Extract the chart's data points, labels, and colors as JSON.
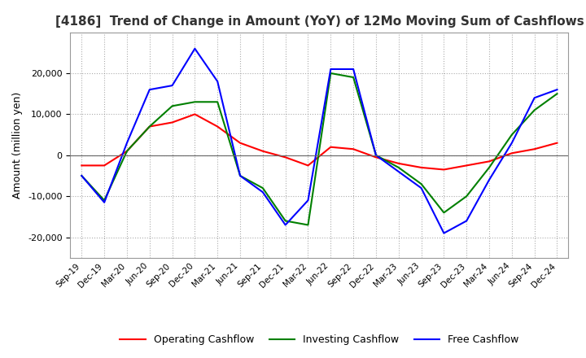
{
  "title": "[4186]  Trend of Change in Amount (YoY) of 12Mo Moving Sum of Cashflows",
  "ylabel": "Amount (million yen)",
  "ylim": [
    -25000,
    30000
  ],
  "yticks": [
    -20000,
    -10000,
    0,
    10000,
    20000
  ],
  "legend_labels": [
    "Operating Cashflow",
    "Investing Cashflow",
    "Free Cashflow"
  ],
  "legend_colors": [
    "#ff0000",
    "#008000",
    "#0000ff"
  ],
  "x_labels": [
    "Sep-19",
    "Dec-19",
    "Mar-20",
    "Jun-20",
    "Sep-20",
    "Dec-20",
    "Mar-21",
    "Jun-21",
    "Sep-21",
    "Dec-21",
    "Mar-22",
    "Jun-22",
    "Sep-22",
    "Dec-22",
    "Mar-23",
    "Jun-23",
    "Sep-23",
    "Dec-23",
    "Mar-24",
    "Jun-24",
    "Sep-24",
    "Dec-24"
  ],
  "operating": [
    -2500,
    -2500,
    1000,
    7000,
    8000,
    10000,
    7000,
    3000,
    1000,
    -500,
    -2500,
    2000,
    1500,
    -500,
    -2000,
    -3000,
    -3500,
    -2500,
    -1500,
    500,
    1500,
    3000
  ],
  "investing": [
    -5000,
    -11000,
    1000,
    7000,
    12000,
    13000,
    13000,
    -5000,
    -8000,
    -16000,
    -17000,
    20000,
    19000,
    0,
    -3000,
    -7000,
    -14000,
    -10000,
    -3000,
    5000,
    11000,
    15000
  ],
  "free": [
    -5000,
    -11500,
    3000,
    16000,
    17000,
    26000,
    18000,
    -5000,
    -9000,
    -17000,
    -11000,
    21000,
    21000,
    0,
    -4000,
    -8000,
    -19000,
    -16000,
    -6000,
    3000,
    14000,
    16000
  ]
}
